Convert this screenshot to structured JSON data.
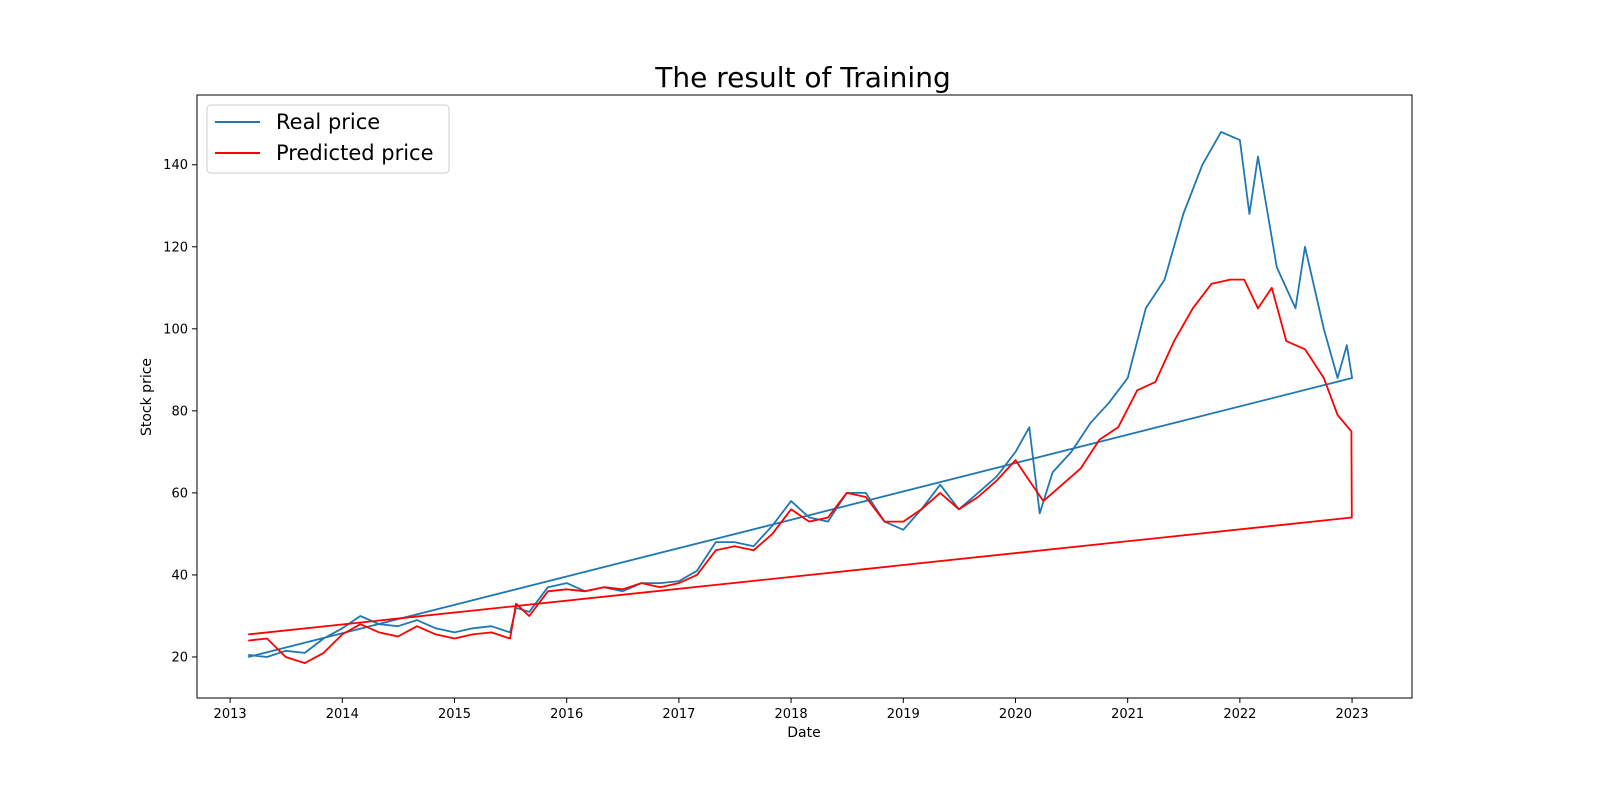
{
  "chart_data": {
    "type": "line",
    "title": "The result of Training",
    "xlabel": "Date",
    "ylabel": "Stock price",
    "x_ticks": [
      "2013",
      "2014",
      "2015",
      "2016",
      "2017",
      "2018",
      "2019",
      "2020",
      "2021",
      "2022",
      "2023"
    ],
    "y_ticks": [
      20,
      40,
      60,
      80,
      100,
      120,
      140
    ],
    "xlim": [
      "2012-09-15",
      "2023-07-15"
    ],
    "ylim": [
      10,
      157
    ],
    "grid": false,
    "legend_position": "top-left",
    "series": [
      {
        "name": "Real price",
        "color": "#1f77b4",
        "points": [
          [
            "2013-03-01",
            20.5
          ],
          [
            "2013-05-01",
            20.0
          ],
          [
            "2013-07-01",
            21.5
          ],
          [
            "2013-09-01",
            21.0
          ],
          [
            "2013-11-01",
            24.5
          ],
          [
            "2014-01-01",
            27.0
          ],
          [
            "2014-03-01",
            30.0
          ],
          [
            "2014-05-01",
            28.0
          ],
          [
            "2014-07-01",
            27.5
          ],
          [
            "2014-09-01",
            29.0
          ],
          [
            "2014-11-01",
            27.0
          ],
          [
            "2015-01-01",
            26.0
          ],
          [
            "2015-03-01",
            27.0
          ],
          [
            "2015-05-01",
            27.5
          ],
          [
            "2015-07-01",
            26.0
          ],
          [
            "2015-07-20",
            32.0
          ],
          [
            "2015-09-01",
            31.0
          ],
          [
            "2015-11-01",
            37.0
          ],
          [
            "2016-01-01",
            38.0
          ],
          [
            "2016-03-01",
            36.0
          ],
          [
            "2016-05-01",
            37.0
          ],
          [
            "2016-07-01",
            36.0
          ],
          [
            "2016-09-01",
            38.0
          ],
          [
            "2016-11-01",
            38.0
          ],
          [
            "2017-01-01",
            38.5
          ],
          [
            "2017-03-01",
            41.0
          ],
          [
            "2017-05-01",
            48.0
          ],
          [
            "2017-07-01",
            48.0
          ],
          [
            "2017-09-01",
            47.0
          ],
          [
            "2017-11-01",
            52.0
          ],
          [
            "2018-01-01",
            58.0
          ],
          [
            "2018-03-01",
            54.0
          ],
          [
            "2018-05-01",
            53.0
          ],
          [
            "2018-07-01",
            60.0
          ],
          [
            "2018-09-01",
            60.0
          ],
          [
            "2018-11-01",
            53.0
          ],
          [
            "2019-01-01",
            51.0
          ],
          [
            "2019-03-01",
            56.0
          ],
          [
            "2019-05-01",
            62.0
          ],
          [
            "2019-07-01",
            56.0
          ],
          [
            "2019-09-01",
            60.0
          ],
          [
            "2019-11-01",
            64.0
          ],
          [
            "2020-01-01",
            70.0
          ],
          [
            "2020-02-15",
            76.0
          ],
          [
            "2020-03-20",
            55.0
          ],
          [
            "2020-05-01",
            65.0
          ],
          [
            "2020-07-01",
            70.0
          ],
          [
            "2020-09-01",
            77.0
          ],
          [
            "2020-11-01",
            82.0
          ],
          [
            "2021-01-01",
            88.0
          ],
          [
            "2021-03-01",
            105.0
          ],
          [
            "2021-05-01",
            112.0
          ],
          [
            "2021-07-01",
            128.0
          ],
          [
            "2021-09-01",
            140.0
          ],
          [
            "2021-11-01",
            148.0
          ],
          [
            "2022-01-01",
            146.0
          ],
          [
            "2022-02-01",
            128.0
          ],
          [
            "2022-03-01",
            142.0
          ],
          [
            "2022-05-01",
            115.0
          ],
          [
            "2022-07-01",
            105.0
          ],
          [
            "2022-08-01",
            120.0
          ],
          [
            "2022-10-01",
            100.0
          ],
          [
            "2022-11-15",
            88.0
          ],
          [
            "2022-12-15",
            96.0
          ],
          [
            "2023-01-01",
            88.0
          ],
          [
            "2013-03-01",
            20.0
          ]
        ]
      },
      {
        "name": "Predicted price",
        "color": "#ff0000",
        "points": [
          [
            "2013-03-01",
            24.0
          ],
          [
            "2013-05-01",
            24.5
          ],
          [
            "2013-07-01",
            20.0
          ],
          [
            "2013-09-01",
            18.5
          ],
          [
            "2013-11-01",
            21.0
          ],
          [
            "2014-01-01",
            25.5
          ],
          [
            "2014-03-01",
            28.0
          ],
          [
            "2014-05-01",
            26.0
          ],
          [
            "2014-07-01",
            25.0
          ],
          [
            "2014-09-01",
            27.5
          ],
          [
            "2014-11-01",
            25.5
          ],
          [
            "2015-01-01",
            24.5
          ],
          [
            "2015-03-01",
            25.5
          ],
          [
            "2015-05-01",
            26.0
          ],
          [
            "2015-07-01",
            24.5
          ],
          [
            "2015-07-20",
            33.0
          ],
          [
            "2015-09-01",
            30.0
          ],
          [
            "2015-11-01",
            36.0
          ],
          [
            "2016-01-01",
            36.5
          ],
          [
            "2016-03-01",
            36.0
          ],
          [
            "2016-05-01",
            37.0
          ],
          [
            "2016-07-01",
            36.5
          ],
          [
            "2016-09-01",
            38.0
          ],
          [
            "2016-11-01",
            37.0
          ],
          [
            "2017-01-01",
            38.0
          ],
          [
            "2017-03-01",
            40.0
          ],
          [
            "2017-05-01",
            46.0
          ],
          [
            "2017-07-01",
            47.0
          ],
          [
            "2017-09-01",
            46.0
          ],
          [
            "2017-11-01",
            50.0
          ],
          [
            "2018-01-01",
            56.0
          ],
          [
            "2018-03-01",
            53.0
          ],
          [
            "2018-05-01",
            54.0
          ],
          [
            "2018-07-01",
            60.0
          ],
          [
            "2018-09-01",
            59.0
          ],
          [
            "2018-11-01",
            53.0
          ],
          [
            "2019-01-01",
            53.0
          ],
          [
            "2019-03-01",
            56.0
          ],
          [
            "2019-05-01",
            60.0
          ],
          [
            "2019-07-01",
            56.0
          ],
          [
            "2019-09-01",
            59.0
          ],
          [
            "2019-11-01",
            63.0
          ],
          [
            "2020-01-01",
            68.0
          ],
          [
            "2020-02-15",
            63.0
          ],
          [
            "2020-04-01",
            58.0
          ],
          [
            "2020-06-01",
            62.0
          ],
          [
            "2020-08-01",
            66.0
          ],
          [
            "2020-10-01",
            73.0
          ],
          [
            "2020-12-01",
            76.0
          ],
          [
            "2021-02-01",
            85.0
          ],
          [
            "2021-04-01",
            87.0
          ],
          [
            "2021-06-01",
            97.0
          ],
          [
            "2021-08-01",
            105.0
          ],
          [
            "2021-10-01",
            111.0
          ],
          [
            "2021-12-01",
            112.0
          ],
          [
            "2022-01-15",
            112.0
          ],
          [
            "2022-03-01",
            105.0
          ],
          [
            "2022-04-15",
            110.0
          ],
          [
            "2022-06-01",
            97.0
          ],
          [
            "2022-08-01",
            95.0
          ],
          [
            "2022-10-01",
            88.0
          ],
          [
            "2022-11-15",
            79.0
          ],
          [
            "2022-12-30",
            75.0
          ],
          [
            "2022-12-31",
            54.0
          ],
          [
            "2013-03-01",
            25.5
          ]
        ]
      }
    ]
  }
}
